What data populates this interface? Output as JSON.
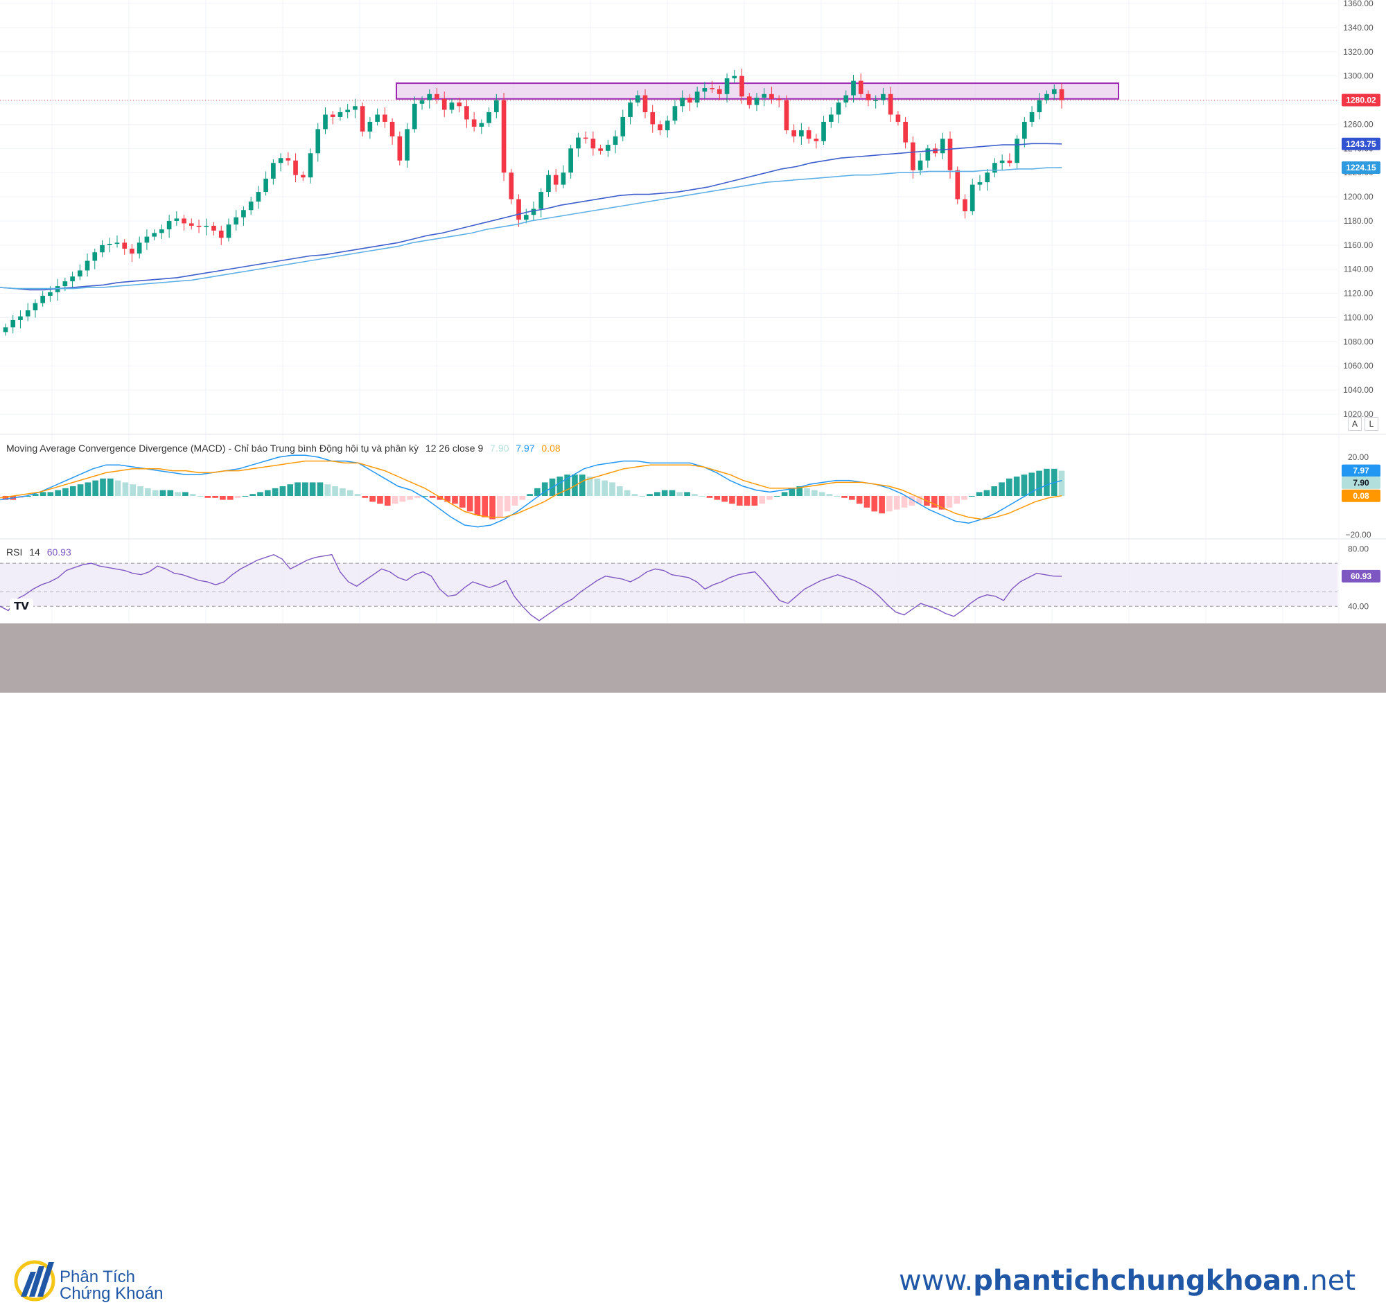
{
  "chart_data": [
    {
      "type": "candlestick",
      "name": "price",
      "ylim": [
        1020,
        1360
      ],
      "y_ticks": [
        "1360.00",
        "1340.00",
        "1320.00",
        "1300.00",
        "1280.00",
        "1260.00",
        "1240.00",
        "1220.00",
        "1200.00",
        "1180.00",
        "1160.00",
        "1140.00",
        "1120.00",
        "1100.00",
        "1080.00",
        "1060.00",
        "1040.00",
        "1020.00"
      ],
      "grid": true,
      "close_series": [
        1092,
        1098,
        1101,
        1106,
        1112,
        1118,
        1121,
        1126,
        1130,
        1134,
        1139,
        1147,
        1154,
        1160,
        1161,
        1162,
        1157,
        1153,
        1162,
        1167,
        1170,
        1173,
        1180,
        1182,
        1178,
        1176,
        1175,
        1176,
        1172,
        1166,
        1177,
        1183,
        1189,
        1196,
        1204,
        1215,
        1228,
        1232,
        1230,
        1218,
        1216,
        1236,
        1256,
        1268,
        1266,
        1270,
        1272,
        1275,
        1254,
        1262,
        1268,
        1262,
        1250,
        1230,
        1256,
        1277,
        1280,
        1285,
        1281,
        1272,
        1278,
        1275,
        1264,
        1258,
        1261,
        1270,
        1280,
        1220,
        1198,
        1181,
        1185,
        1190,
        1204,
        1218,
        1210,
        1220,
        1240,
        1249,
        1248,
        1240,
        1238,
        1243,
        1250,
        1266,
        1278,
        1284,
        1270,
        1260,
        1255,
        1263,
        1275,
        1282,
        1278,
        1287,
        1290,
        1289,
        1285,
        1298,
        1300,
        1283,
        1276,
        1282,
        1285,
        1281,
        1280,
        1255,
        1250,
        1255,
        1248,
        1246,
        1262,
        1268,
        1278,
        1284,
        1296,
        1285,
        1280,
        1280,
        1285,
        1268,
        1262,
        1245,
        1222,
        1230,
        1240,
        1236,
        1248,
        1222,
        1198,
        1188,
        1210,
        1212,
        1220,
        1228,
        1230,
        1228,
        1248,
        1262,
        1270,
        1280,
        1285,
        1289,
        1280
      ],
      "reference_line": {
        "value": 1280.02,
        "label": "1280.02",
        "color": "#f23645"
      },
      "ma_series": [
        {
          "value_label": "1243.75",
          "color": "#3d5ecc",
          "values": [
            1125,
            1124,
            1123,
            1123,
            1124,
            1125,
            1126,
            1127,
            1129,
            1130,
            1131,
            1132,
            1133,
            1135,
            1137,
            1139,
            1141,
            1143,
            1145,
            1147,
            1149,
            1151,
            1152,
            1154,
            1156,
            1158,
            1160,
            1162,
            1165,
            1168,
            1170,
            1173,
            1176,
            1179,
            1182,
            1185,
            1188,
            1190,
            1193,
            1195,
            1197,
            1199,
            1201,
            1202,
            1202,
            1203,
            1204,
            1206,
            1208,
            1211,
            1214,
            1217,
            1220,
            1223,
            1225,
            1228,
            1230,
            1232,
            1233,
            1234,
            1235,
            1236,
            1237,
            1238,
            1239,
            1240,
            1241,
            1242,
            1243,
            1243,
            1244,
            1244,
            1243.75
          ]
        },
        {
          "value_label": "1224.15",
          "color": "#5fb0e6",
          "values": [
            1125,
            1124,
            1124,
            1124,
            1124,
            1124,
            1125,
            1125,
            1126,
            1127,
            1128,
            1129,
            1130,
            1131,
            1133,
            1135,
            1137,
            1139,
            1141,
            1143,
            1145,
            1147,
            1149,
            1151,
            1153,
            1155,
            1157,
            1159,
            1162,
            1164,
            1166,
            1168,
            1170,
            1173,
            1175,
            1177,
            1180,
            1182,
            1184,
            1186,
            1188,
            1190,
            1192,
            1194,
            1196,
            1198,
            1200,
            1202,
            1204,
            1206,
            1208,
            1210,
            1212,
            1213,
            1214,
            1215,
            1216,
            1217,
            1218,
            1218,
            1219,
            1220,
            1220,
            1221,
            1221,
            1221,
            1221,
            1222,
            1222,
            1223,
            1223,
            1224,
            1224.15
          ]
        }
      ],
      "zone": {
        "from": 1281,
        "to": 1294,
        "x_start": 0.318,
        "x_end": 0.898
      },
      "up_color": "#089981",
      "down_color": "#f23645"
    },
    {
      "type": "bar+line",
      "name": "macd",
      "title": "Moving Average Convergence Divergence (MACD) - Chỉ báo Trung bình Động hội tụ và phân kỳ",
      "params": "12 26 close 9",
      "values_text": [
        "7.90",
        "7.97",
        "0.08"
      ],
      "ylim": [
        -20,
        20
      ],
      "y_ticks": [
        "20.00",
        "−20.00"
      ],
      "histogram": [
        -2,
        -2,
        -1,
        0,
        1,
        2,
        2,
        3,
        4,
        5,
        6,
        7,
        8,
        9,
        9,
        8,
        7,
        6,
        5,
        4,
        3,
        3,
        3,
        2,
        2,
        1,
        0,
        -1,
        -1,
        -2,
        -2,
        -1,
        0,
        1,
        2,
        3,
        4,
        5,
        6,
        7,
        7,
        7,
        7,
        6,
        5,
        4,
        3,
        1,
        -1,
        -3,
        -4,
        -5,
        -4,
        -3,
        -2,
        -1,
        0,
        -1,
        -2,
        -3,
        -4,
        -6,
        -8,
        -10,
        -11,
        -12,
        -11,
        -8,
        -5,
        -2,
        1,
        4,
        7,
        9,
        10,
        11,
        11,
        11,
        10,
        9,
        8,
        7,
        5,
        3,
        1,
        0,
        1,
        2,
        3,
        3,
        2,
        2,
        1,
        0,
        -1,
        -2,
        -3,
        -4,
        -5,
        -5,
        -5,
        -4,
        -2,
        0,
        2,
        4,
        5,
        4,
        3,
        2,
        1,
        0,
        -1,
        -2,
        -4,
        -6,
        -8,
        -9,
        -8,
        -7,
        -6,
        -5,
        -4,
        -5,
        -6,
        -7,
        -6,
        -4,
        -2,
        0,
        2,
        3,
        5,
        7,
        9,
        10,
        11,
        12,
        13,
        14,
        14,
        13
      ],
      "macd_line": [
        -2,
        -1,
        0,
        2,
        5,
        8,
        11,
        14,
        16,
        16,
        15,
        14,
        13,
        12,
        11,
        11,
        12,
        13,
        14,
        16,
        18,
        20,
        21,
        21,
        20,
        18,
        18,
        17,
        13,
        9,
        5,
        3,
        -1,
        -6,
        -11,
        -15,
        -16,
        -15,
        -12,
        -8,
        -3,
        2,
        6,
        10,
        14,
        16,
        17,
        18,
        18,
        17,
        17,
        17,
        17,
        15,
        12,
        8,
        5,
        3,
        2,
        3,
        4,
        6,
        7,
        8,
        8,
        7,
        6,
        4,
        1,
        -3,
        -7,
        -10,
        -13,
        -14,
        -12,
        -9,
        -5,
        -1,
        3,
        6,
        7.97
      ],
      "signal_line": [
        -1,
        0,
        1,
        2,
        4,
        6,
        8,
        10,
        12,
        13,
        14,
        14,
        14,
        13,
        13,
        12,
        12,
        13,
        13,
        14,
        15,
        16,
        17,
        18,
        18,
        18,
        17,
        17,
        15,
        13,
        10,
        7,
        4,
        0,
        -4,
        -8,
        -10,
        -11,
        -11,
        -9,
        -6,
        -3,
        1,
        4,
        8,
        10,
        12,
        14,
        15,
        16,
        16,
        16,
        16,
        15,
        13,
        11,
        8,
        6,
        4,
        4,
        4,
        5,
        6,
        7,
        7,
        7,
        6,
        5,
        3,
        0,
        -3,
        -6,
        -9,
        -11,
        -12,
        -11,
        -9,
        -6,
        -3,
        -1,
        0.08
      ],
      "hist_colors": {
        "up_strong": "#26a69a",
        "up_weak": "#b2dfdb",
        "down_strong": "#ff5252",
        "down_weak": "#ffcdd2"
      },
      "line_colors": {
        "macd": "#2196f3",
        "signal": "#ff9800"
      }
    },
    {
      "type": "line",
      "name": "rsi",
      "title": "RSI",
      "params": "14",
      "value_text": "60.93",
      "ylim": [
        30,
        85
      ],
      "y_ticks": [
        "80.00",
        "40.00"
      ],
      "band": [
        40,
        70
      ],
      "midline": 50,
      "values": [
        40,
        37,
        45,
        48,
        52,
        55,
        57,
        60,
        65,
        67,
        69,
        70,
        68,
        67,
        66,
        65,
        63,
        62,
        64,
        68,
        66,
        63,
        62,
        60,
        58,
        57,
        55,
        57,
        62,
        66,
        69,
        72,
        74,
        76,
        73,
        66,
        69,
        72,
        74,
        75,
        76,
        64,
        57,
        54,
        58,
        62,
        66,
        64,
        60,
        58,
        62,
        64,
        61,
        52,
        47,
        48,
        53,
        57,
        55,
        53,
        55,
        58,
        47,
        40,
        34,
        30,
        34,
        38,
        42,
        45,
        50,
        54,
        58,
        61,
        60,
        59,
        57,
        60,
        64,
        66,
        65,
        62,
        61,
        60,
        57,
        52,
        55,
        57,
        60,
        62,
        63,
        64,
        58,
        51,
        44,
        42,
        47,
        52,
        55,
        58,
        60,
        62,
        60,
        58,
        55,
        52,
        47,
        41,
        36,
        34,
        38,
        42,
        40,
        38,
        35,
        33,
        37,
        42,
        46,
        48,
        47,
        44,
        52,
        57,
        60,
        63,
        62,
        61,
        60.93
      ],
      "line_color": "#7e57c2",
      "band_color": "#ede7f6"
    }
  ],
  "axis_buttons": {
    "auto": "A",
    "log": "L"
  },
  "tv_logo": "TV",
  "footer": {
    "brand_line1": "Phân Tích",
    "brand_line2": "Chứng Khoán",
    "url_prefix": "www.",
    "url_bold": "phantichchungkhoan",
    "url_suffix": ".net",
    "brand_color": "#1f56a5",
    "background_color": "#b1a8aa"
  }
}
